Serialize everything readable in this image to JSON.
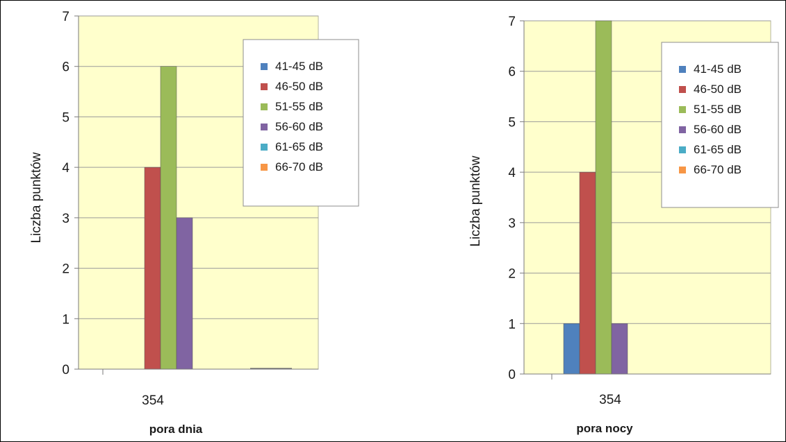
{
  "chart_data": [
    {
      "type": "bar",
      "categories": [
        "354"
      ],
      "series": [
        {
          "name": "41-45 dB",
          "values": [
            0
          ],
          "color": "#4f81bd"
        },
        {
          "name": "46-50 dB",
          "values": [
            4
          ],
          "color": "#c0504d"
        },
        {
          "name": "51-55 dB",
          "values": [
            6
          ],
          "color": "#9bbb59"
        },
        {
          "name": "56-60 dB",
          "values": [
            3
          ],
          "color": "#8064a2"
        },
        {
          "name": "61-65 dB",
          "values": [
            0
          ],
          "color": "#4bacc6"
        },
        {
          "name": "66-70 dB",
          "values": [
            0
          ],
          "color": "#f79646"
        }
      ],
      "xlabel": "pora dnia",
      "ylabel": "Liczba punktów",
      "ylim": [
        0,
        7
      ],
      "yticks": [
        "0",
        "1",
        "2",
        "3",
        "4",
        "5",
        "6",
        "7"
      ],
      "grid": true,
      "legend": "top-right",
      "plot_background": "#ffffcc"
    },
    {
      "type": "bar",
      "categories": [
        "354"
      ],
      "series": [
        {
          "name": "41-45 dB",
          "values": [
            1
          ],
          "color": "#4f81bd"
        },
        {
          "name": "46-50 dB",
          "values": [
            4
          ],
          "color": "#c0504d"
        },
        {
          "name": "51-55 dB",
          "values": [
            7
          ],
          "color": "#9bbb59"
        },
        {
          "name": "56-60 dB",
          "values": [
            1
          ],
          "color": "#8064a2"
        },
        {
          "name": "61-65 dB",
          "values": [
            0
          ],
          "color": "#4bacc6"
        },
        {
          "name": "66-70 dB",
          "values": [
            0
          ],
          "color": "#f79646"
        }
      ],
      "xlabel": "pora nocy",
      "ylabel": "Liczba punktów",
      "ylim": [
        0,
        7
      ],
      "yticks": [
        "0",
        "1",
        "2",
        "3",
        "4",
        "5",
        "6",
        "7"
      ],
      "grid": true,
      "legend": "top-right",
      "plot_background": "#ffffcc"
    }
  ]
}
